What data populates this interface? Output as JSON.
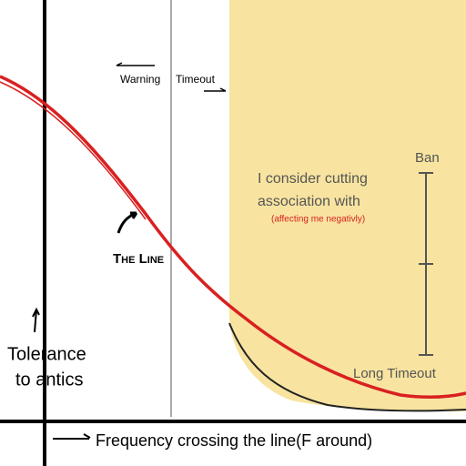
{
  "top_labels": {
    "left": "Warning",
    "right": "Timeout"
  },
  "zone": {
    "lines": [
      "I consider cutting",
      "association with"
    ],
    "note": "(affecting me negativly)"
  },
  "scale": {
    "top": "Ban",
    "bottom": "Long Timeout"
  },
  "curve_label": "The Line",
  "y_axis_label": [
    "Tolerance",
    "to antics"
  ],
  "x_axis_label": "Frequency crossing the line(F around)"
}
